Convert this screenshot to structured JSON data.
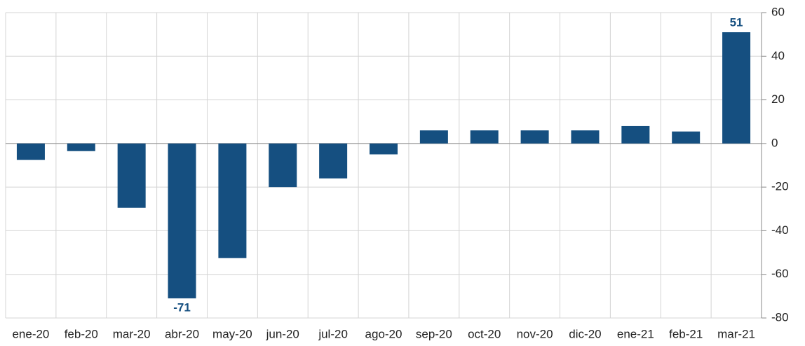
{
  "chart_data": {
    "type": "bar",
    "categories": [
      "ene-20",
      "feb-20",
      "mar-20",
      "abr-20",
      "may-20",
      "jun-20",
      "jul-20",
      "ago-20",
      "sep-20",
      "oct-20",
      "nov-20",
      "dic-20",
      "ene-21",
      "feb-21",
      "mar-21"
    ],
    "values": [
      -7.5,
      -3.5,
      -29.5,
      -71,
      -52.5,
      -20,
      -16,
      -5,
      6,
      6,
      6,
      6,
      8,
      5.5,
      51
    ],
    "value_labels": [
      null,
      null,
      null,
      "-71",
      null,
      null,
      null,
      null,
      null,
      null,
      null,
      null,
      null,
      null,
      "51"
    ],
    "color": "#154f80",
    "ylim": [
      -80,
      60
    ],
    "yticks": [
      -80,
      -60,
      -40,
      -20,
      0,
      20,
      40,
      60
    ],
    "grid": true
  }
}
